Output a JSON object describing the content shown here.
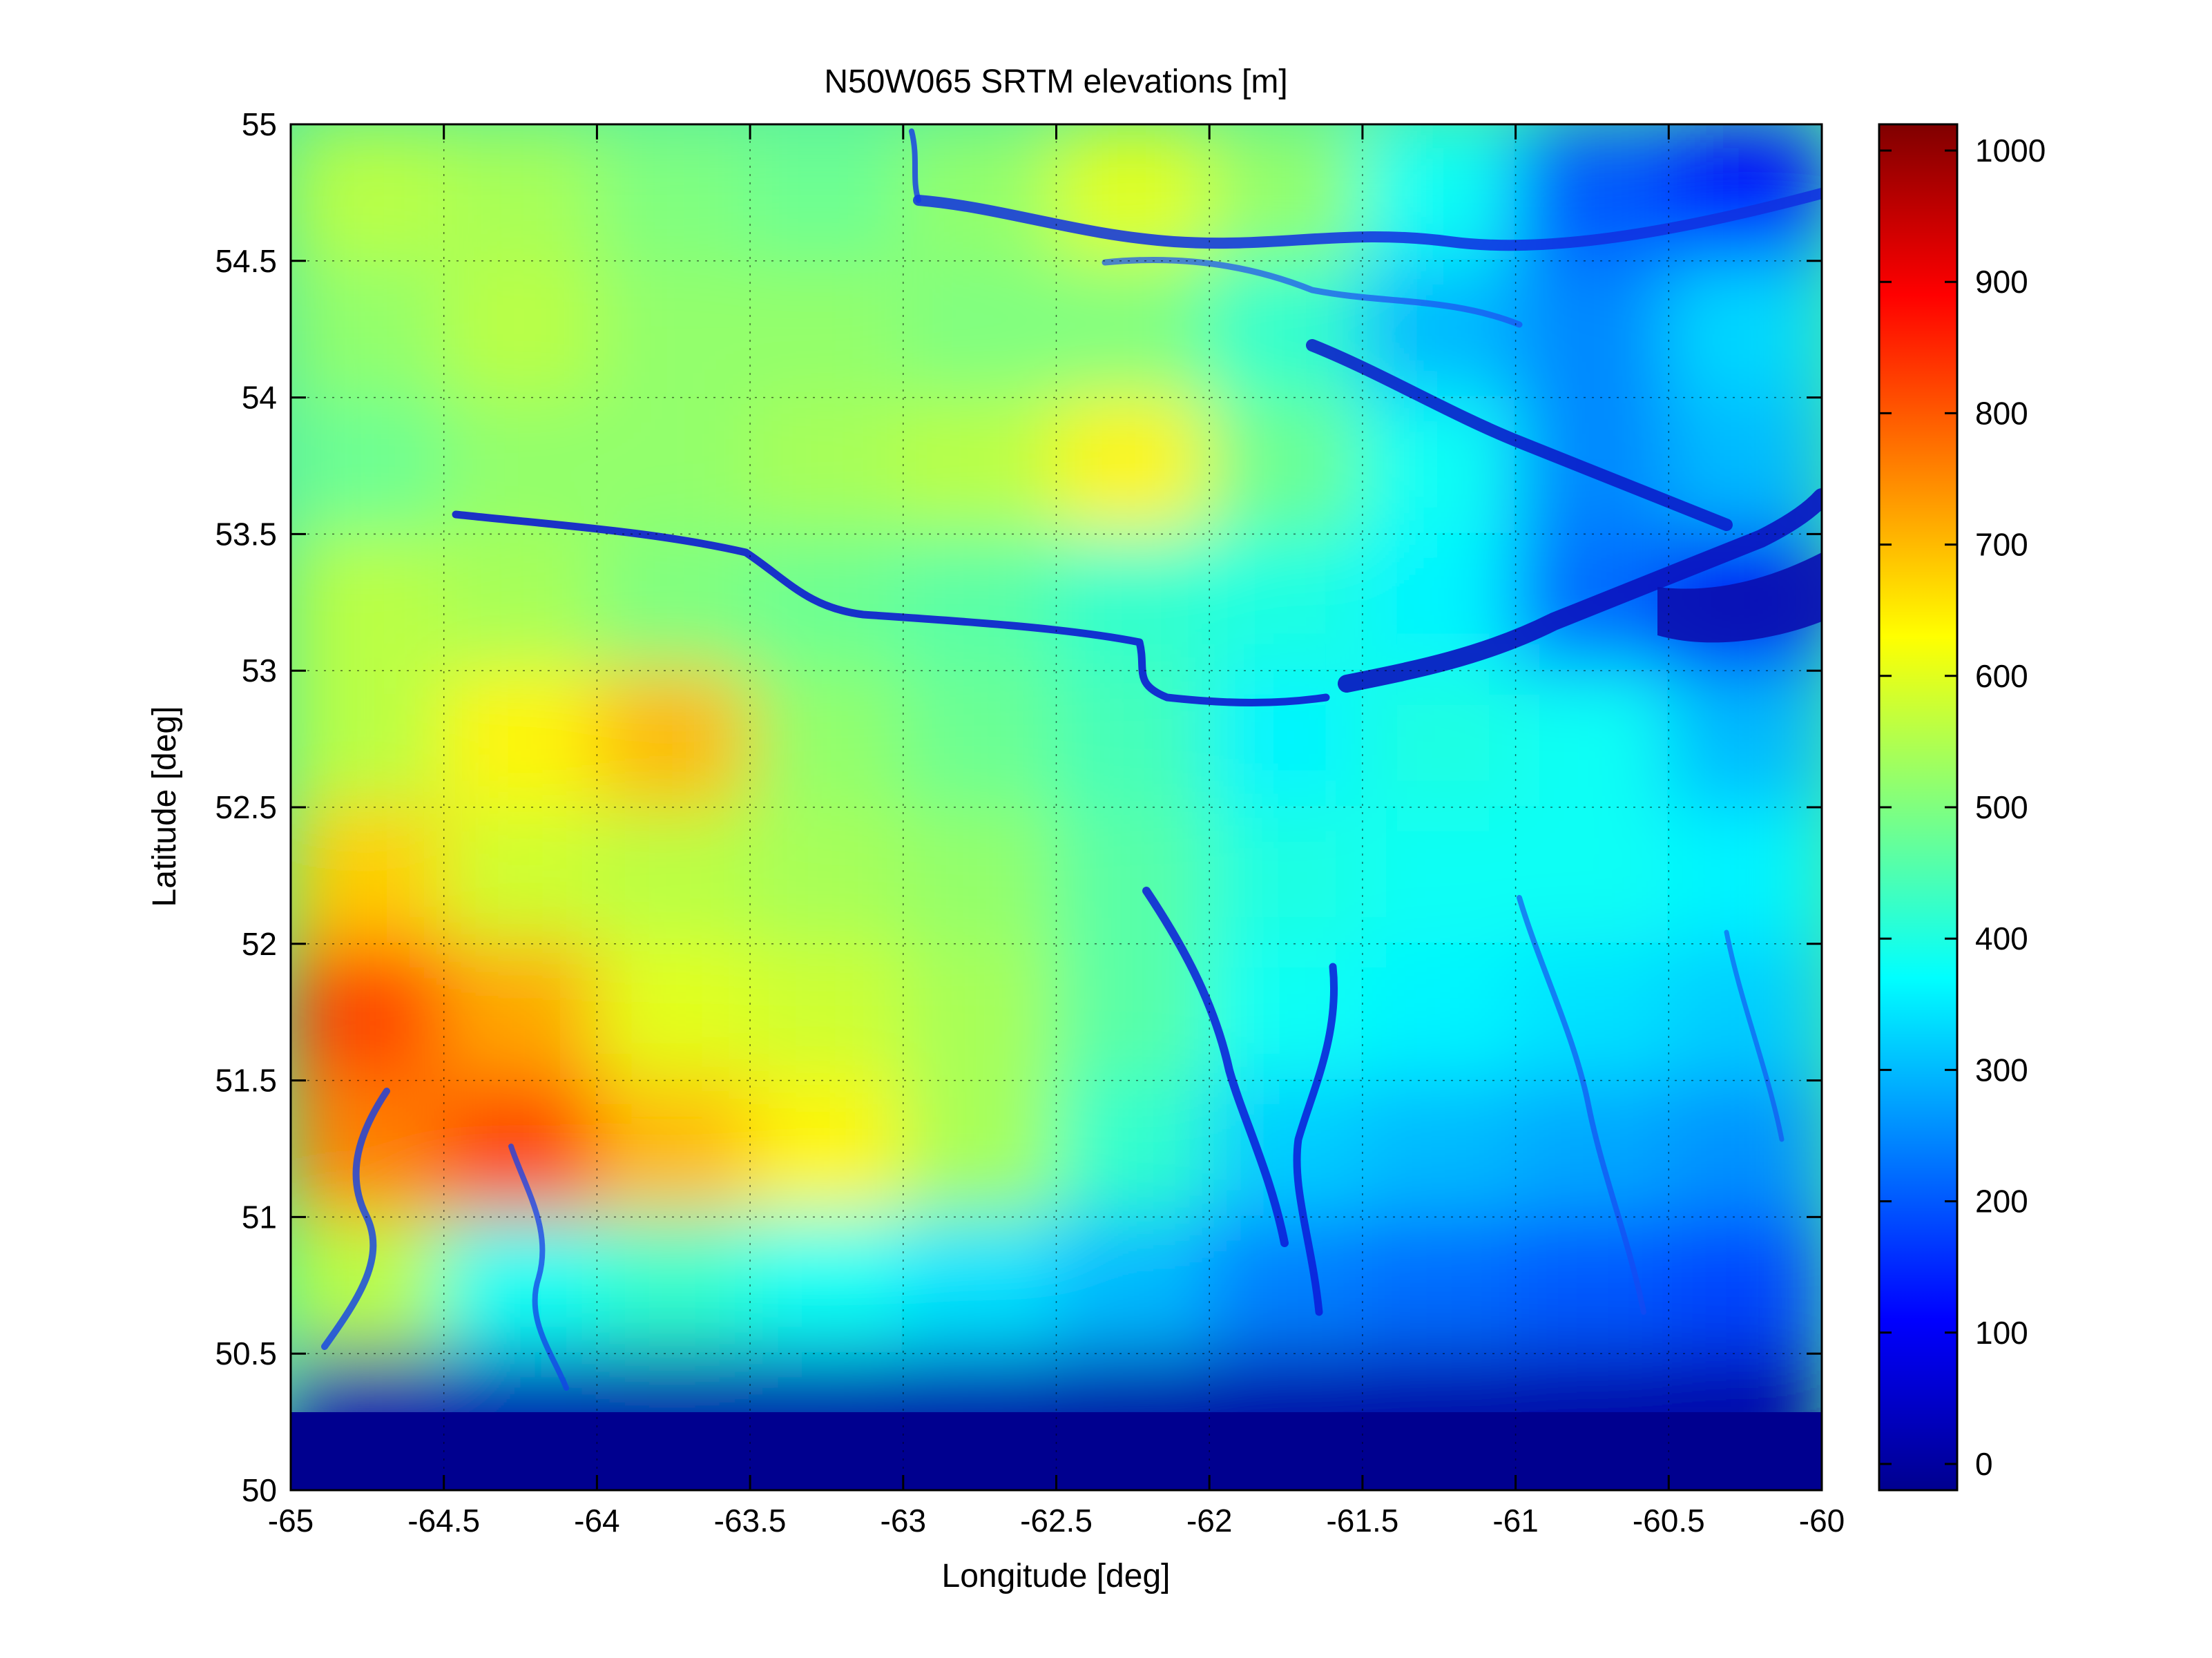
{
  "chart_data": {
    "type": "heatmap",
    "title": "N50W065 SRTM elevations [m]",
    "xlabel": "Longitude [deg]",
    "ylabel": "Latitude [deg]",
    "xlim": [
      -65,
      -60
    ],
    "ylim": [
      50,
      55
    ],
    "x_ticks": [
      -65,
      -64.5,
      -64,
      -63.5,
      -63,
      -62.5,
      -62,
      -61.5,
      -61,
      -60.5,
      -60
    ],
    "y_ticks": [
      50,
      50.5,
      51,
      51.5,
      52,
      52.5,
      53,
      53.5,
      54,
      54.5,
      55
    ],
    "grid": true,
    "colormap": "jet",
    "colorbar": {
      "location": "right",
      "clim": [
        -20,
        1020
      ],
      "ticks": [
        0,
        100,
        200,
        300,
        400,
        500,
        600,
        700,
        800,
        900,
        1000
      ]
    },
    "grid_rows": 10,
    "grid_cols": 10,
    "approx_elevations_m": [
      [
        560,
        540,
        500,
        480,
        520,
        600,
        520,
        380,
        200,
        120
      ],
      [
        520,
        560,
        520,
        520,
        500,
        500,
        420,
        300,
        250,
        330
      ],
      [
        480,
        520,
        520,
        540,
        560,
        640,
        480,
        380,
        250,
        300
      ],
      [
        560,
        540,
        500,
        480,
        460,
        420,
        400,
        360,
        220,
        100
      ],
      [
        560,
        640,
        700,
        520,
        480,
        440,
        360,
        400,
        380,
        300
      ],
      [
        680,
        580,
        560,
        540,
        520,
        460,
        400,
        380,
        380,
        360
      ],
      [
        820,
        720,
        600,
        580,
        540,
        460,
        380,
        360,
        340,
        320
      ],
      [
        760,
        820,
        700,
        640,
        540,
        420,
        320,
        300,
        280,
        260
      ],
      [
        560,
        380,
        420,
        380,
        340,
        300,
        240,
        220,
        200,
        180
      ],
      [
        30,
        30,
        25,
        25,
        25,
        20,
        20,
        20,
        20,
        20
      ]
    ]
  }
}
